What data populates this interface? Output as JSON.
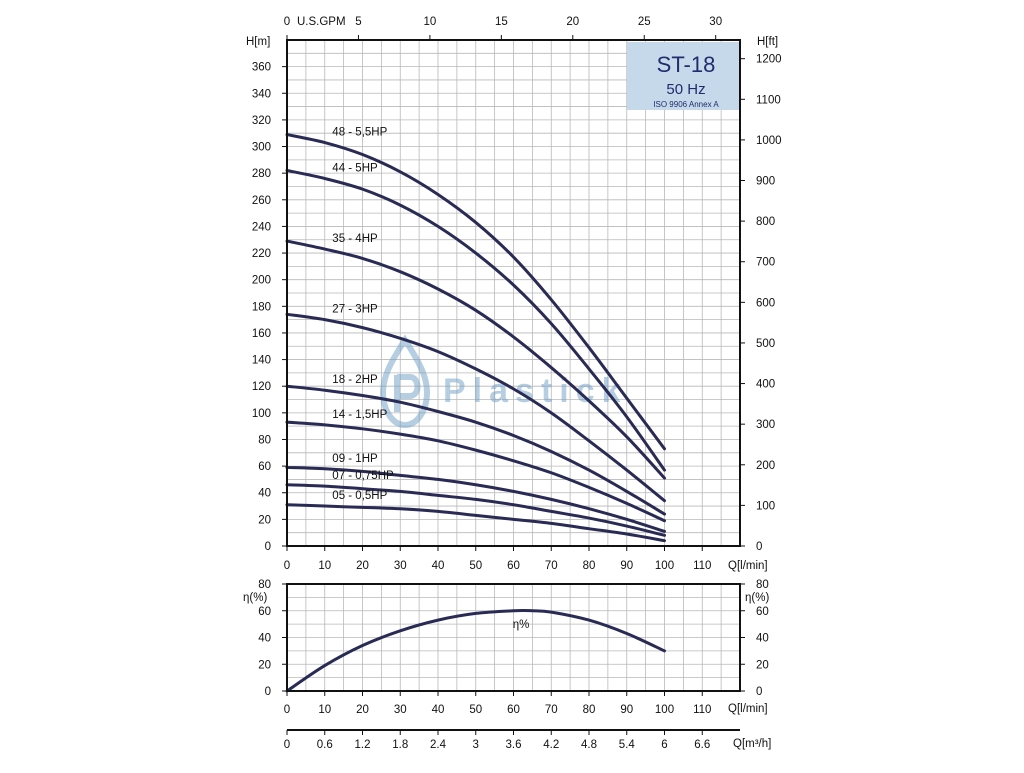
{
  "chart_data": [
    {
      "type": "line",
      "title": "ST-18",
      "subtitle": "50 Hz",
      "note": "ISO 9906 Annex A",
      "xlabel": "Q[l/min]",
      "ylabel": "H[m]",
      "ylabel_right": "H[ft]",
      "top_axis_label": "U.S.GPM",
      "xlim": [
        0,
        120
      ],
      "ylim": [
        0,
        380
      ],
      "y_right_lim": [
        0,
        1246
      ],
      "x_ticks": [
        "0",
        "10",
        "20",
        "30",
        "40",
        "50",
        "60",
        "70",
        "80",
        "90",
        "100",
        "110"
      ],
      "y_ticks": [
        "0",
        "20",
        "40",
        "60",
        "80",
        "100",
        "120",
        "140",
        "160",
        "180",
        "200",
        "220",
        "240",
        "260",
        "280",
        "300",
        "320",
        "340",
        "360"
      ],
      "y_right_ticks": [
        "0",
        "100",
        "200",
        "300",
        "400",
        "500",
        "600",
        "700",
        "800",
        "900",
        "1000",
        "1100",
        "1200"
      ],
      "top_ticks": [
        "0",
        "5",
        "10",
        "15",
        "20",
        "25",
        "30"
      ],
      "grid": true,
      "series": [
        {
          "name": "48 - 5,5HP",
          "x": [
            0,
            10,
            20,
            30,
            40,
            50,
            60,
            70,
            80,
            90,
            100
          ],
          "y": [
            309,
            303,
            294,
            281,
            264,
            243,
            217,
            185,
            149,
            111,
            73
          ]
        },
        {
          "name": "44 - 5HP",
          "x": [
            0,
            10,
            20,
            30,
            40,
            50,
            60,
            70,
            80,
            90,
            100
          ],
          "y": [
            282,
            276,
            268,
            256,
            240,
            220,
            196,
            167,
            133,
            97,
            57
          ]
        },
        {
          "name": "35 - 4HP",
          "x": [
            0,
            10,
            20,
            30,
            40,
            50,
            60,
            70,
            80,
            90,
            100
          ],
          "y": [
            229,
            223,
            216,
            206,
            193,
            177,
            157,
            134,
            109,
            82,
            51
          ]
        },
        {
          "name": "27 - 3HP",
          "x": [
            0,
            10,
            20,
            30,
            40,
            50,
            60,
            70,
            80,
            90,
            100
          ],
          "y": [
            174,
            170,
            164,
            156,
            146,
            133,
            118,
            100,
            79,
            57,
            34
          ]
        },
        {
          "name": "18 - 2HP",
          "x": [
            0,
            10,
            20,
            30,
            40,
            50,
            60,
            70,
            80,
            90,
            100
          ],
          "y": [
            120,
            117,
            113,
            108,
            101,
            93,
            83,
            71,
            57,
            41,
            24
          ]
        },
        {
          "name": "14 - 1,5HP",
          "x": [
            0,
            10,
            20,
            30,
            40,
            50,
            60,
            70,
            80,
            90,
            100
          ],
          "y": [
            93,
            91,
            88,
            84,
            79,
            72,
            64,
            55,
            44,
            32,
            19
          ]
        },
        {
          "name": "09 - 1HP",
          "x": [
            0,
            10,
            20,
            30,
            40,
            50,
            60,
            70,
            80,
            90,
            100
          ],
          "y": [
            59,
            58,
            56,
            53,
            50,
            46,
            41,
            35,
            28,
            20,
            11
          ]
        },
        {
          "name": "07 - 0,75HP",
          "x": [
            0,
            10,
            20,
            30,
            40,
            50,
            60,
            70,
            80,
            90,
            100
          ],
          "y": [
            46,
            45,
            43,
            41,
            38,
            35,
            31,
            26,
            21,
            15,
            8
          ]
        },
        {
          "name": "05 - 0,5HP",
          "x": [
            0,
            10,
            20,
            30,
            40,
            50,
            60,
            70,
            80,
            90,
            100
          ],
          "y": [
            31,
            30,
            29,
            28,
            26,
            23,
            20,
            17,
            13,
            9,
            4
          ]
        }
      ]
    },
    {
      "type": "line",
      "ylabel": "η(%)",
      "ylabel_right": "η(%)",
      "xlabel": "Q[l/min]",
      "xlabel_secondary": "Q[m³/h]",
      "xlim": [
        0,
        120
      ],
      "ylim": [
        0,
        80
      ],
      "x_ticks": [
        "0",
        "10",
        "20",
        "30",
        "40",
        "50",
        "60",
        "70",
        "80",
        "90",
        "100",
        "110"
      ],
      "y_ticks": [
        "0",
        "20",
        "40",
        "60",
        "80"
      ],
      "m3h_ticks": [
        "0",
        "0.6",
        "1.2",
        "1.8",
        "2.4",
        "3",
        "3.6",
        "4.2",
        "4.8",
        "5.4",
        "6",
        "6.6"
      ],
      "grid": true,
      "series": [
        {
          "name": "η%",
          "x": [
            0,
            10,
            20,
            30,
            40,
            50,
            60,
            65,
            70,
            80,
            90,
            100
          ],
          "y": [
            0,
            19,
            34,
            45,
            53,
            58,
            60,
            60,
            59,
            53,
            43,
            30
          ]
        }
      ]
    }
  ],
  "watermark": {
    "text": "Plastick"
  },
  "colors": {
    "curve": "#2a2b55",
    "title_box": "#c5d9ea",
    "grid": "#b8b8b8",
    "watermark": "#6f9ec6"
  }
}
